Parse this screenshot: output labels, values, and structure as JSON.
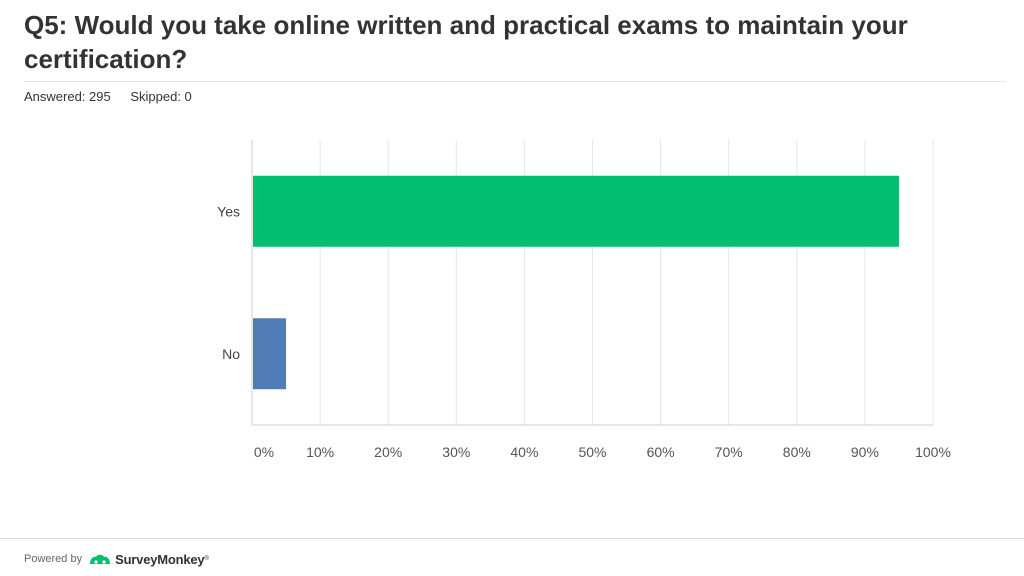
{
  "question": {
    "title": "Q5: Would you take online written and practical exams to maintain your certification?"
  },
  "stats": {
    "answered_label": "Answered: 295",
    "skipped_label": "Skipped: 0"
  },
  "footer": {
    "powered_by": "Powered by",
    "brand": "SurveyMonkey",
    "brand_color": "#00bf6f",
    "brand_text_color": "#2d3237"
  },
  "chart_data": {
    "type": "bar",
    "orientation": "horizontal",
    "categories": [
      "Yes",
      "No"
    ],
    "values": [
      95,
      5
    ],
    "colors": [
      "#00bf6f",
      "#507cb6"
    ],
    "xlim": [
      0,
      100
    ],
    "ticks": [
      "0%",
      "10%",
      "20%",
      "30%",
      "40%",
      "50%",
      "60%",
      "70%",
      "80%",
      "90%",
      "100%"
    ],
    "grid": true
  }
}
